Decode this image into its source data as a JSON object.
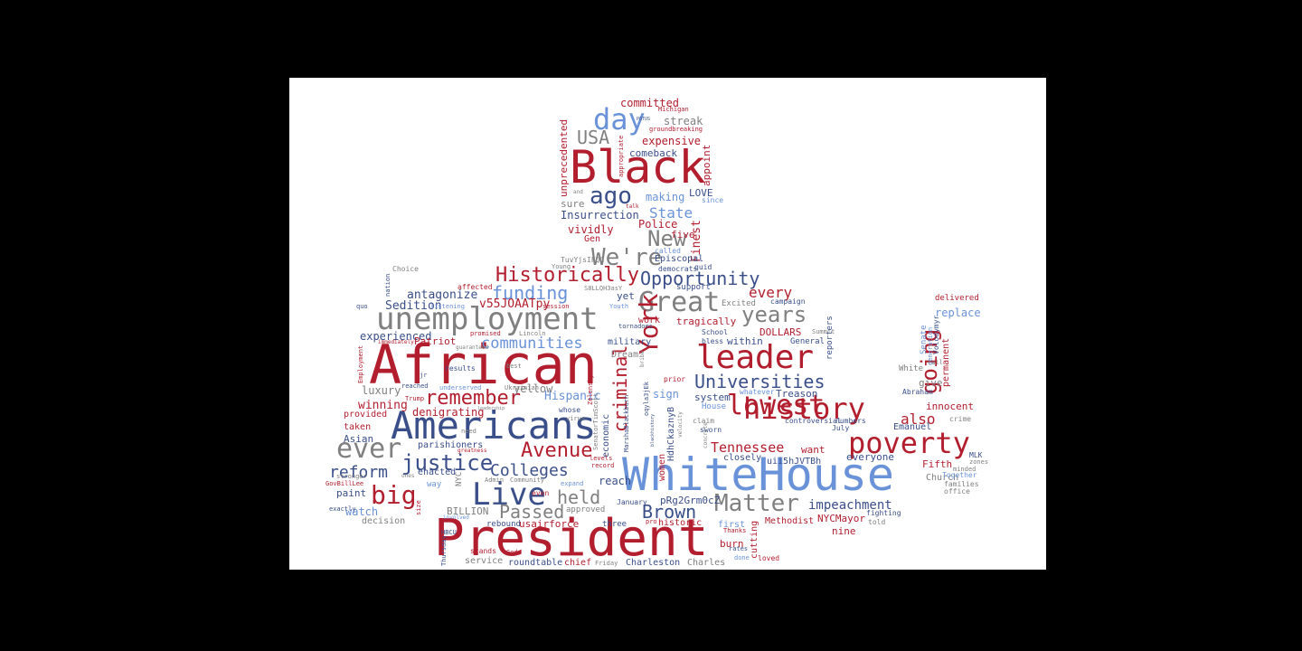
{
  "colors": {
    "background": "#000000",
    "canvas": "#ffffff",
    "red": "#b21e2e",
    "blue": "#6a92d8",
    "navy": "#3a4f8a",
    "gray": "#808080"
  },
  "words": {
    "whitehouse": "WhiteHouse",
    "president": "President",
    "african": "African",
    "black": "Black",
    "americans": "Americans",
    "unemployment": "unemployment",
    "leader": "leader",
    "history": "history",
    "poverty": "poverty",
    "lowest": "lowest",
    "great": "Great",
    "live": "Live",
    "ever": "ever",
    "day": "day",
    "were": "We're",
    "new": "New",
    "york": "York",
    "ago": "ago",
    "usa": "USA",
    "years": "years",
    "historically": "Historically",
    "opportunity": "Opportunity",
    "universities": "Universities",
    "remember": "remember",
    "justice": "justice",
    "avenue": "Avenue",
    "big": "big",
    "reform": "reform",
    "colleges": "Colleges",
    "communities": "communities",
    "funding": "funding",
    "matter": "Matter",
    "brown": "Brown",
    "going": "going",
    "criminal": "criminal",
    "tennessee": "Tennessee",
    "impeachment": "impeachment",
    "passed": "Passed",
    "held": "held",
    "also": "also",
    "every": "every",
    "state": "State",
    "committed": "committed",
    "streak": "streak",
    "expensive": "expensive",
    "comeback": "comeback",
    "making": "making",
    "love": "LOVE",
    "insurrection": "Insurrection",
    "sure": "sure",
    "police": "Police",
    "vividly": "vividly",
    "gen": "Gen",
    "finest": "Finest",
    "episcopal": "Episcopal",
    "five": "five",
    "unprecedented": "unprecedented",
    "appoint": "appoint",
    "antagonize": "antagonize",
    "sedition": "Sedition",
    "v55": "v55JOAATpy",
    "experienced": "experienced",
    "patriot": "Patriot",
    "luxury": "luxury",
    "winning": "winning",
    "denigrating": "denigrating",
    "hispanic": "Hispanic",
    "yellow": "yellow",
    "asian": "Asian",
    "taken": "taken",
    "provided": "provided",
    "parishioners": "parishioners",
    "paint": "paint",
    "watch": "watch",
    "decision": "decision",
    "billion": "BILLION",
    "usairforce": "usairforce",
    "service": "service",
    "roundtable": "roundtable",
    "chief": "chief",
    "charleston": "Charleston",
    "charles": "Charles",
    "economic": "economic",
    "reach": "reach",
    "enacted": "enacted",
    "women": "women",
    "sign": "sign",
    "system": "system",
    "treason": "Treason",
    "burn": "burn",
    "cutting": "cutting",
    "methodist": "Methodist",
    "nycmayor": "NYCMayor",
    "nine": "nine",
    "want": "want",
    "everyone": "everyone",
    "closely": "closely",
    "dollars": "DOLLARS",
    "within": "within",
    "tragically": "tragically",
    "military": "military",
    "dream": "Dream",
    "yet": "yet",
    "work": "work",
    "replace": "replace",
    "innocent": "innocent",
    "fifth": "Fifth",
    "church": "Church",
    "emanuel": "Emanuel",
    "give": "give",
    "permanent": "permanent",
    "white": "White",
    "abraham": "Abraham",
    "delivered": "delivered",
    "prgz": "pRg2Grm0cZ",
    "uii5": "uii5hJVTBh",
    "hdhc": "HdhCkaznyB",
    "january": "January",
    "approved": "approved",
    "rebound": "rebound",
    "three": "three",
    "historic": "historic",
    "first": "first",
    "general": "General",
    "school": "School",
    "bless": "bless",
    "concrete": "concrete",
    "mlk": "MLK",
    "crime": "crime",
    "zones": "zones",
    "families": "families",
    "office": "office",
    "together": "Together",
    "fighting": "fighting",
    "told": "told",
    "july": "July",
    "numbers": "numbers",
    "controversial": "controversial",
    "claim": "claim",
    "sworn": "sworn",
    "whatever": "whatever",
    "house": "House",
    "prior": "prior",
    "reporters": "reporters",
    "summit": "Summit",
    "campaign": "campaign",
    "excited": "Excited",
    "support": "support",
    "democrats": "democrats",
    "quid": "quid",
    "called": "called",
    "since": "since",
    "talk": "talk",
    "tuvy": "TuvYjsIFQG",
    "young": "Young",
    "choice": "Choice",
    "nation": "nation",
    "affected": "affected",
    "s8l": "S8LLQH3asY",
    "session": "session",
    "listening": "listening",
    "youth": "Youth",
    "quo": "quo",
    "immediately": "immediately",
    "promised": "promised",
    "lincoln": "Lincoln",
    "guaranteed": "guaranteed",
    "tornadoes": "tornadoes",
    "results": "results",
    "best": "best",
    "employment": "Employment",
    "reached": "reached",
    "underserved": "underserved",
    "ukrainian": "Ukrainian",
    "trump": "Trump",
    "jr": "jr",
    "zelensky": "Zelensky",
    "whose": "whose",
    "virus": "virus",
    "need": "need",
    "leadership": "leadership",
    "marsha": "MarshaBlackburn",
    "senatortim": "SenatorTimScott",
    "admin": "Admin",
    "community": "Community",
    "expand": "expand",
    "friday": "Friday",
    "levels": "levels",
    "record": "record",
    "greatness": "greatness",
    "stronger": "stronger",
    "ones": "ones",
    "govbill": "GovBillLee",
    "exactly": "exactly",
    "way": "way",
    "nyc": "NYC",
    "even": "even",
    "size": "size",
    "involved": "involved",
    "hbcu": "HBCU",
    "thursday": "Thursday",
    "stands": "stands",
    "god": "God",
    "thanks": "Thanks",
    "rates": "rates",
    "done": "done",
    "loved": "loved",
    "pro": "pro",
    "velocity": "velocity",
    "bribe": "bribe",
    "potus": "POTUS",
    "michigan": "Michigan",
    "groundbreaking": "groundbreaking",
    "appropriate": "appropriate",
    "senate": "Senate",
    "volodymyr": "Volodymyr",
    "generation": "generation",
    "call": "call",
    "minded": "minded",
    "oqy": "oqyla3jEk",
    "blackhist": "blackhistory",
    "and": "and"
  }
}
